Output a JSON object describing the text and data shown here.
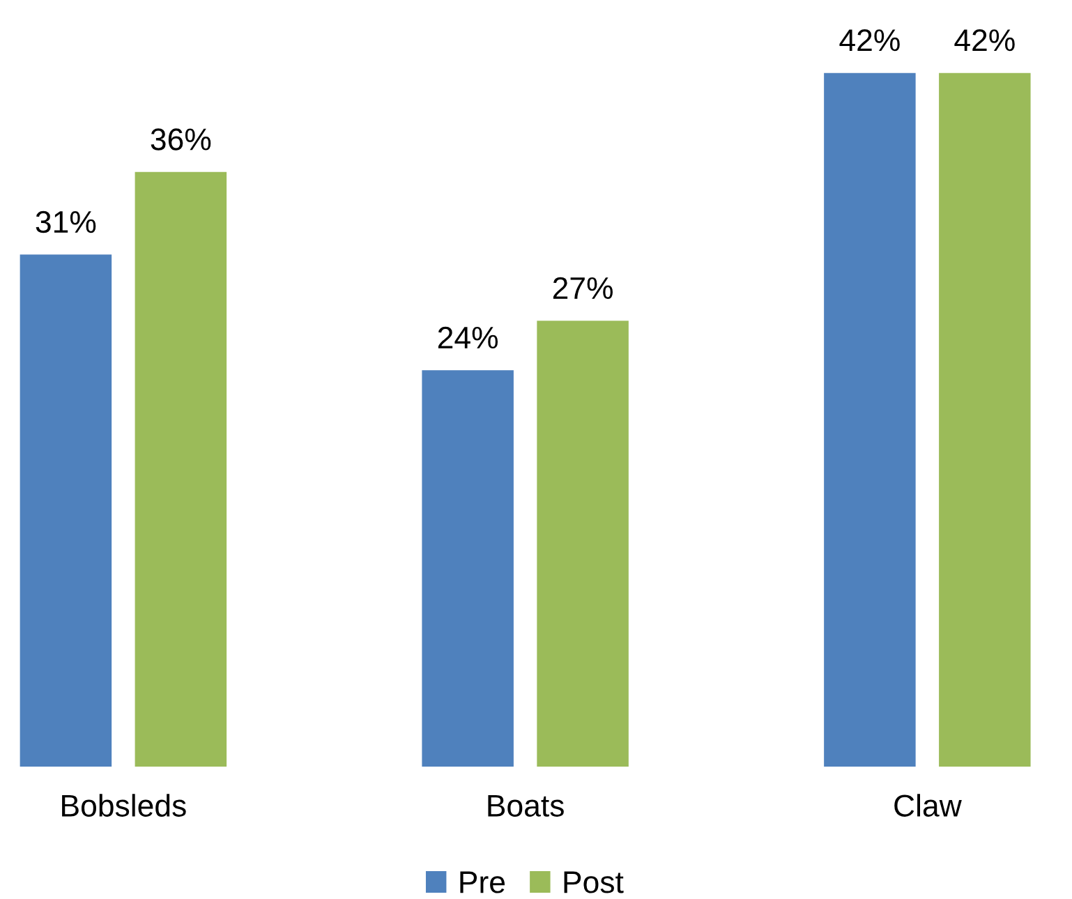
{
  "chart_data": {
    "type": "bar",
    "categories": [
      "Bobsleds",
      "Boats",
      "Claw"
    ],
    "series": [
      {
        "name": "Pre",
        "color": "#4f81bd",
        "values": [
          31,
          24,
          42
        ],
        "value_labels": [
          "31%",
          "24%",
          "42%"
        ]
      },
      {
        "name": "Post",
        "color": "#9bbb59",
        "values": [
          36,
          27,
          42
        ],
        "value_labels": [
          "36%",
          "27%",
          "42%"
        ]
      }
    ],
    "legend": "bottom",
    "grid": false
  }
}
